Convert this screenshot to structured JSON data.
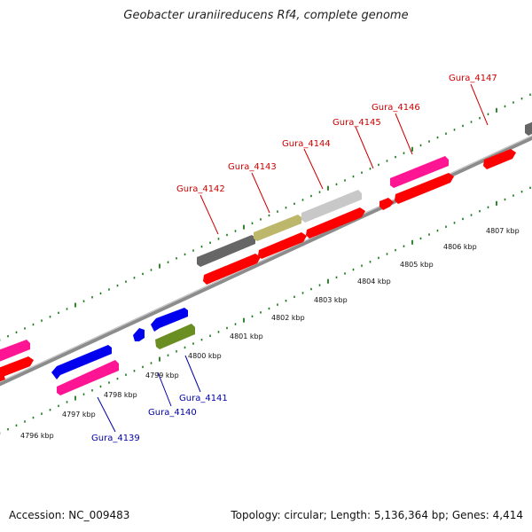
{
  "title": "Geobacter uraniireducens Rf4, complete genome",
  "footer": {
    "accession": "Accession: NC_009483",
    "summary": "Topology: circular; Length: 5,136,364 bp; Genes: 4,414"
  },
  "colors": {
    "fwd_label": "#cc0000",
    "rev_label": "#0000aa",
    "red": "#ff0000",
    "pink": "#ff1493",
    "blue": "#0000ee",
    "olive": "#6b8e23",
    "darkgray": "#666666",
    "khaki": "#bdb76b",
    "lightgray": "#c8c8c8",
    "tick": "#1a7a1a"
  },
  "scale": {
    "unit": "kbp",
    "ticks": [
      {
        "label": "4796 kbp"
      },
      {
        "label": "4797 kbp"
      },
      {
        "label": "4798 kbp"
      },
      {
        "label": "4799 kbp"
      },
      {
        "label": "4800 kbp"
      },
      {
        "label": "4801 kbp"
      },
      {
        "label": "4802 kbp"
      },
      {
        "label": "4803 kbp"
      },
      {
        "label": "4804 kbp"
      },
      {
        "label": "4805 kbp"
      },
      {
        "label": "4806 kbp"
      },
      {
        "label": "4807 kbp"
      }
    ]
  },
  "genes": {
    "forward": [
      "Gura_4142",
      "Gura_4143",
      "Gura_4144",
      "Gura_4145",
      "Gura_4146",
      "Gura_4147"
    ],
    "reverse": [
      "Gura_4139",
      "Gura_4140",
      "Gura_4141"
    ]
  }
}
